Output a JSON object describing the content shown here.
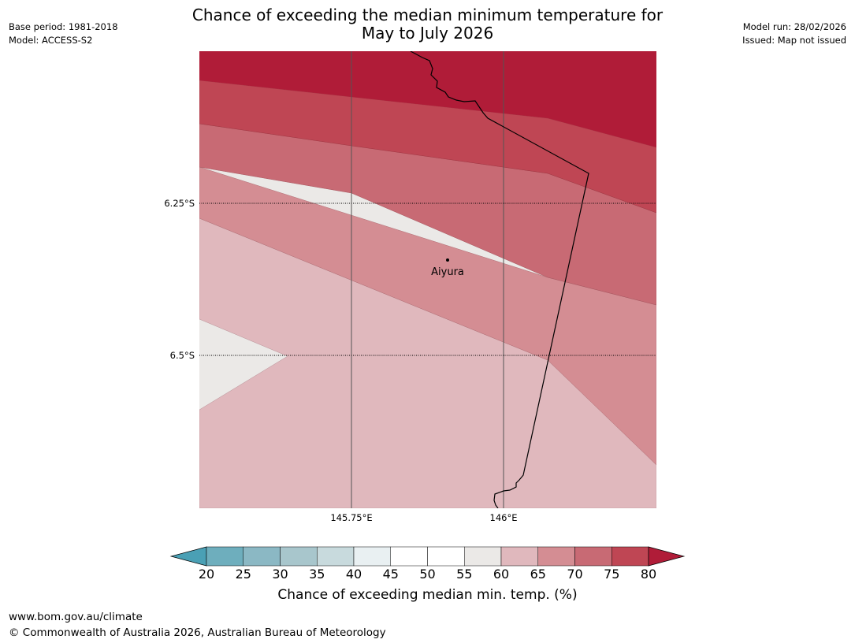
{
  "title": {
    "line1": "Chance of exceeding the median minimum temperature for",
    "line2": "May to July 2026"
  },
  "meta_left": {
    "base_period": "Base period: 1981-2018",
    "model": "Model: ACCESS-S2"
  },
  "meta_right": {
    "model_run": "Model run: 28/02/2026",
    "issued": "Issued: Map not issued"
  },
  "map": {
    "place": "Aiyura",
    "lat_labels": [
      "6.25°S",
      "6.5°S"
    ],
    "lon_labels": [
      "145.75°E",
      "146°E"
    ],
    "lat_range": [
      6.0,
      6.75
    ],
    "lon_range": [
      145.5,
      146.25
    ],
    "place_coords": {
      "lon": 145.906,
      "lat": 6.34
    }
  },
  "colorbar": {
    "ticks": [
      "20",
      "25",
      "30",
      "35",
      "40",
      "45",
      "50",
      "55",
      "60",
      "65",
      "70",
      "75",
      "80"
    ],
    "colors": [
      "#4aa0b5",
      "#6eaebd",
      "#8bb8c4",
      "#a8c6cc",
      "#c8dadd",
      "#e9f0f2",
      "#ffffff",
      "#ffffff",
      "#ebe9e7",
      "#e0b8bd",
      "#d48d93",
      "#c86a74",
      "#bf4654",
      "#b01c38"
    ],
    "label": "Chance of exceeding median min. temp. (%)"
  },
  "footer": {
    "url": "www.bom.gov.au/climate",
    "copyright": "© Commonwealth of Australia 2026, Australian Bureau of Meteorology"
  }
}
